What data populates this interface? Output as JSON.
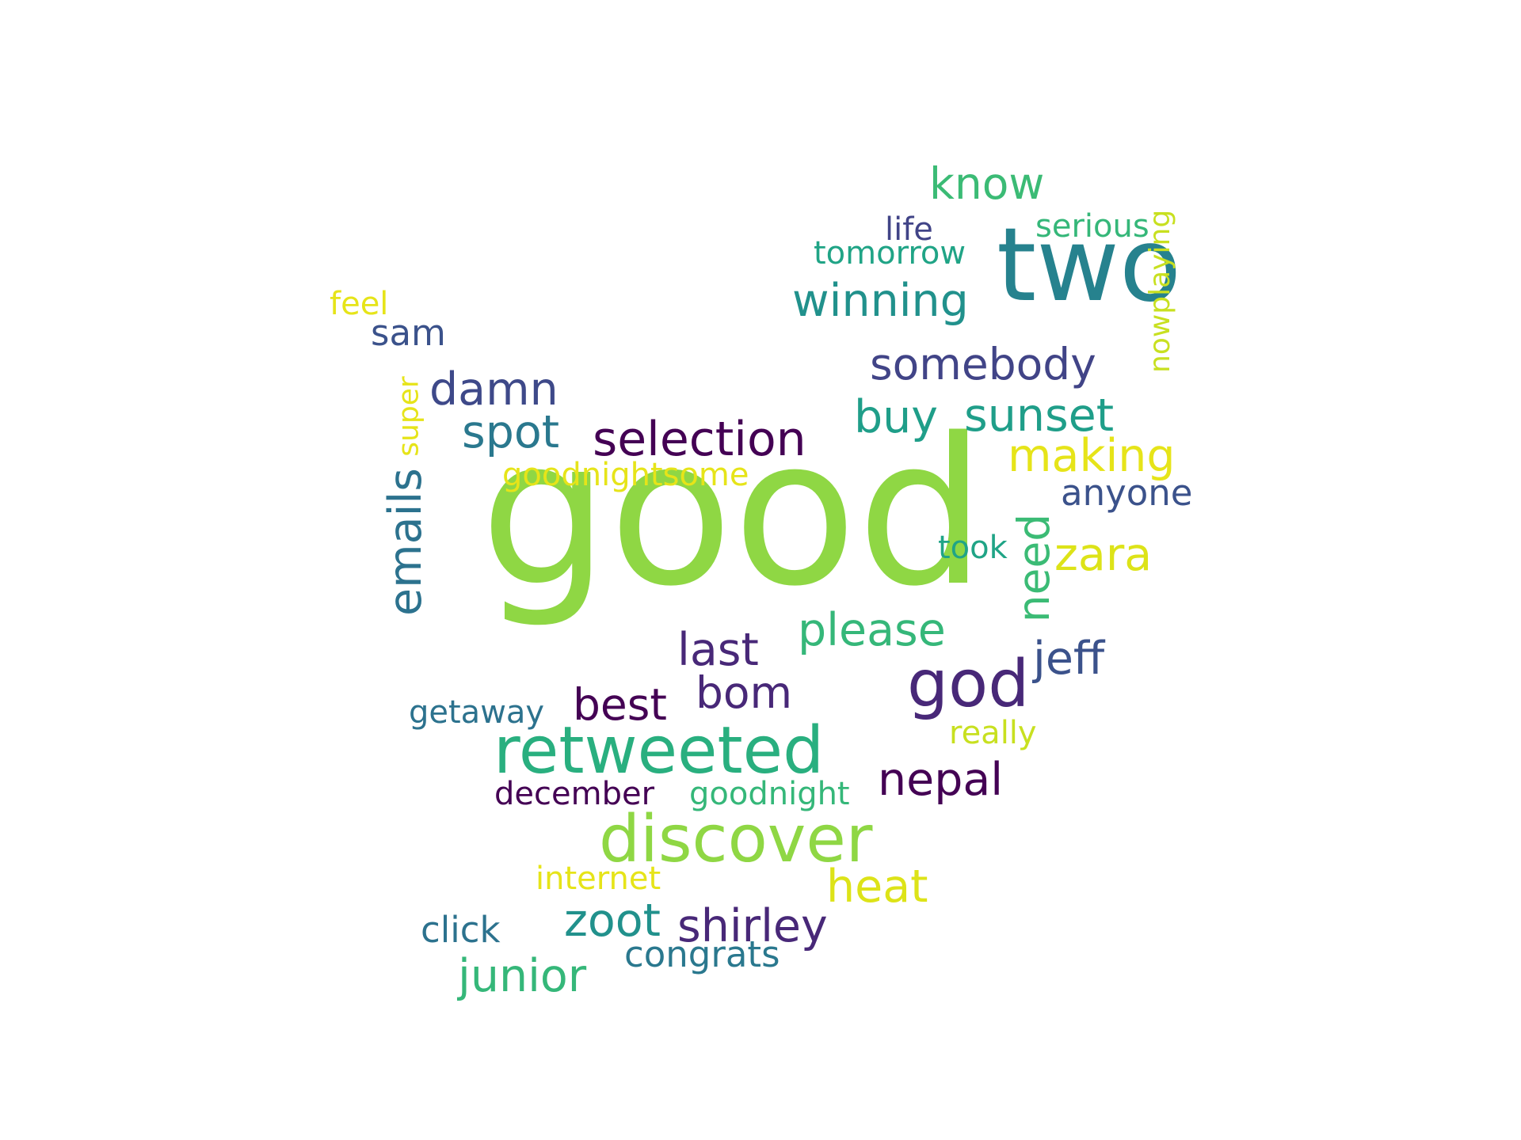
{
  "words": [
    {
      "id": "good",
      "text": "good",
      "color": "#8fd744"
    },
    {
      "id": "two",
      "text": "two",
      "color": "#26828e"
    },
    {
      "id": "retweeted",
      "text": "retweeted",
      "color": "#29af7f"
    },
    {
      "id": "discover",
      "text": "discover",
      "color": "#8fd744"
    },
    {
      "id": "god",
      "text": "god",
      "color": "#482878"
    },
    {
      "id": "selection",
      "text": "selection",
      "color": "#440154"
    },
    {
      "id": "sunset",
      "text": "sunset",
      "color": "#1f9e89"
    },
    {
      "id": "somebody",
      "text": "somebody",
      "color": "#414487"
    },
    {
      "id": "winning",
      "text": "winning",
      "color": "#21918c"
    },
    {
      "id": "know",
      "text": "know",
      "color": "#3bbb75"
    },
    {
      "id": "making",
      "text": "making",
      "color": "#e6e419"
    },
    {
      "id": "spot",
      "text": "spot",
      "color": "#2a788e"
    },
    {
      "id": "damn",
      "text": "damn",
      "color": "#3e4989"
    },
    {
      "id": "buy",
      "text": "buy",
      "color": "#1f9e89"
    },
    {
      "id": "emails",
      "text": "emails",
      "color": "#2c728e"
    },
    {
      "id": "zara",
      "text": "zara",
      "color": "#dde318"
    },
    {
      "id": "need",
      "text": "need",
      "color": "#3bbb75"
    },
    {
      "id": "please",
      "text": "please",
      "color": "#35b779"
    },
    {
      "id": "jeff",
      "text": "jeff",
      "color": "#3b528b"
    },
    {
      "id": "last",
      "text": "last",
      "color": "#482878"
    },
    {
      "id": "bom",
      "text": "bom",
      "color": "#482878"
    },
    {
      "id": "best",
      "text": "best",
      "color": "#440154"
    },
    {
      "id": "nepal",
      "text": "nepal",
      "color": "#440154"
    },
    {
      "id": "heat",
      "text": "heat",
      "color": "#dde318"
    },
    {
      "id": "shirley",
      "text": "shirley",
      "color": "#482878"
    },
    {
      "id": "zoot",
      "text": "zoot",
      "color": "#21918c"
    },
    {
      "id": "junior",
      "text": "junior",
      "color": "#35b779"
    },
    {
      "id": "congrats",
      "text": "congrats",
      "color": "#2a788e"
    },
    {
      "id": "click",
      "text": "click",
      "color": "#2c728e"
    },
    {
      "id": "internet",
      "text": "internet",
      "color": "#e6e419"
    },
    {
      "id": "december",
      "text": "december",
      "color": "#440154"
    },
    {
      "id": "goodnight",
      "text": "goodnight",
      "color": "#35b779"
    },
    {
      "id": "getaway",
      "text": "getaway",
      "color": "#2c728e"
    },
    {
      "id": "really",
      "text": "really",
      "color": "#c8e020"
    },
    {
      "id": "took",
      "text": "took",
      "color": "#20a486"
    },
    {
      "id": "anyone",
      "text": "anyone",
      "color": "#3b528b"
    },
    {
      "id": "goodnightsome",
      "text": "goodnightsome",
      "color": "#e6e419"
    },
    {
      "id": "super",
      "text": "super",
      "color": "#e6e419"
    },
    {
      "id": "sam",
      "text": "sam",
      "color": "#3b528b"
    },
    {
      "id": "feel",
      "text": "feel",
      "color": "#e6e419"
    },
    {
      "id": "tomorrow",
      "text": "tomorrow",
      "color": "#20a486"
    },
    {
      "id": "life",
      "text": "life",
      "color": "#414487"
    },
    {
      "id": "serious",
      "text": "serious",
      "color": "#35b779"
    },
    {
      "id": "nowplaying",
      "text": "nowplaying",
      "color": "#c8e020"
    }
  ]
}
